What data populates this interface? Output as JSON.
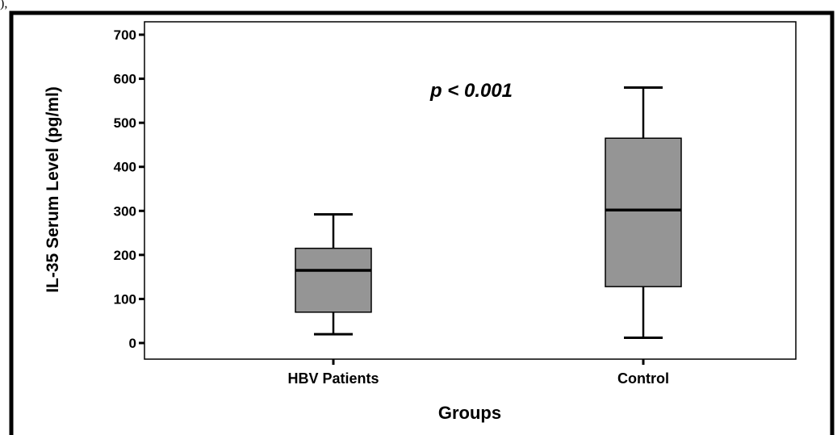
{
  "corner_text": "),",
  "chart_data": {
    "type": "boxplot",
    "categories": [
      "HBV Patients",
      "Control"
    ],
    "boxes": [
      {
        "category": "HBV Patients",
        "min": 20,
        "q1": 70,
        "median": 165,
        "q3": 215,
        "max": 292
      },
      {
        "category": "Control",
        "min": 12,
        "q1": 128,
        "median": 302,
        "q3": 465,
        "max": 580
      }
    ],
    "xlabel": "Groups",
    "ylabel": "IL-35 Serum Level (pg/ml)",
    "ylim": [
      -40,
      715
    ],
    "yticks": [
      0,
      100,
      200,
      300,
      400,
      500,
      600,
      700
    ],
    "annotation": "p < 0.001",
    "colors": {
      "box_fill": "#959595",
      "stroke": "#000000"
    },
    "grid": false
  }
}
